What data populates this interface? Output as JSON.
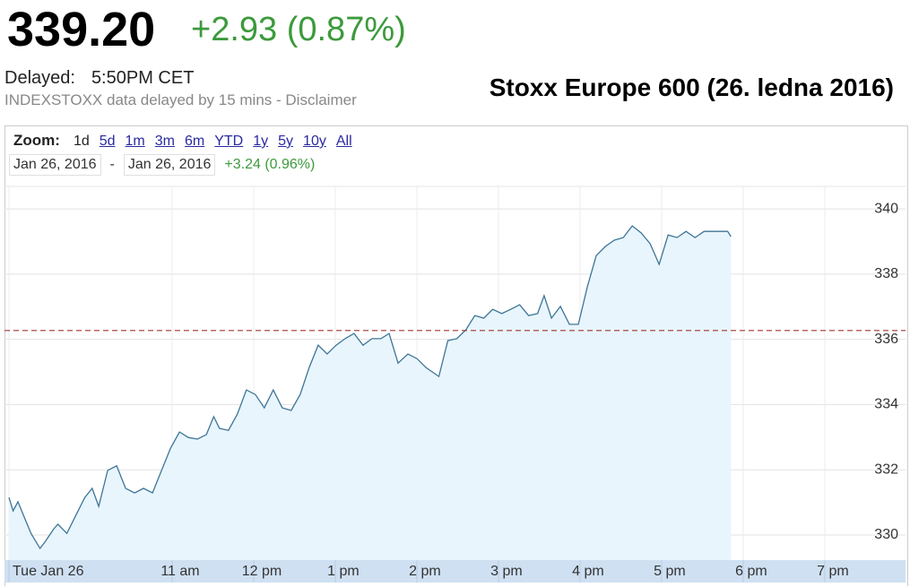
{
  "header": {
    "price": "339.20",
    "change": "+2.93 (0.87%)",
    "delayed_label": "Delayed:",
    "delayed_time": "5:50PM CET",
    "disclaimer": "INDEXSTOXX data delayed by 15 mins - Disclaimer",
    "title": "Stoxx Europe 600 (26. ledna 2016)"
  },
  "controls": {
    "zoom_label": "Zoom:",
    "zoom_options": [
      "1d",
      "5d",
      "1m",
      "3m",
      "6m",
      "YTD",
      "1y",
      "5y",
      "10y",
      "All"
    ],
    "date_from": "Jan 26, 2016",
    "separator": "-",
    "date_to": "Jan 26, 2016",
    "range_change": "+3.24 (0.96%)"
  },
  "chart_data": {
    "type": "line",
    "x": [
      9.0,
      9.05,
      9.11,
      9.2,
      9.27,
      9.38,
      9.44,
      9.55,
      9.6,
      9.71,
      9.82,
      9.93,
      10.02,
      10.1,
      10.21,
      10.32,
      10.43,
      10.54,
      10.65,
      10.76,
      10.87,
      10.98,
      11.09,
      11.2,
      11.31,
      11.42,
      11.51,
      11.58,
      11.69,
      11.8,
      11.91,
      12.02,
      12.13,
      12.24,
      12.35,
      12.46,
      12.57,
      12.68,
      12.79,
      12.9,
      13.01,
      13.12,
      13.23,
      13.34,
      13.45,
      13.56,
      13.66,
      13.77,
      13.89,
      14.0,
      14.11,
      14.27,
      14.38,
      14.49,
      14.6,
      14.71,
      14.82,
      14.93,
      15.04,
      15.15,
      15.26,
      15.37,
      15.48,
      15.56,
      15.65,
      15.76,
      15.87,
      15.98,
      16.09,
      16.2,
      16.31,
      16.42,
      16.53,
      16.64,
      16.75,
      16.86,
      16.97,
      17.08,
      17.19,
      17.3,
      17.41,
      17.52,
      17.68,
      17.81,
      17.85
    ],
    "values": [
      331.15,
      330.74,
      331.02,
      330.47,
      330.05,
      329.59,
      329.78,
      330.19,
      330.33,
      330.05,
      330.6,
      331.15,
      331.43,
      330.88,
      331.98,
      332.12,
      331.43,
      331.29,
      331.43,
      331.29,
      331.98,
      332.66,
      333.16,
      332.99,
      332.94,
      333.08,
      333.63,
      333.27,
      333.21,
      333.71,
      334.45,
      334.31,
      333.9,
      334.45,
      333.9,
      333.82,
      334.31,
      335.14,
      335.82,
      335.55,
      335.82,
      336.02,
      336.18,
      335.82,
      336.02,
      336.02,
      336.18,
      335.27,
      335.55,
      335.41,
      335.14,
      334.86,
      335.96,
      336.02,
      336.29,
      336.73,
      336.65,
      336.92,
      336.79,
      336.92,
      337.06,
      336.73,
      336.79,
      337.34,
      336.65,
      337.01,
      336.46,
      336.46,
      337.61,
      338.57,
      338.85,
      339.04,
      339.12,
      339.48,
      339.26,
      338.93,
      338.3,
      339.2,
      339.12,
      339.31,
      339.12,
      339.31,
      339.31,
      339.31,
      339.15
    ],
    "color": "#3e7596",
    "fill_color": "#e8f5fd",
    "xlim": [
      8.945,
      19.99
    ],
    "ylim": [
      329.23,
      340.69
    ],
    "xticks": [
      {
        "value": 9,
        "label": "Tue Jan 26"
      },
      {
        "value": 11,
        "label": "11 am"
      },
      {
        "value": 12,
        "label": "12 pm"
      },
      {
        "value": 13,
        "label": "1 pm"
      },
      {
        "value": 14,
        "label": "2 pm"
      },
      {
        "value": 15,
        "label": "3 pm"
      },
      {
        "value": 16,
        "label": "4 pm"
      },
      {
        "value": 17,
        "label": "5 pm"
      },
      {
        "value": 18,
        "label": "6 pm"
      },
      {
        "value": 19,
        "label": "7 pm"
      }
    ],
    "yticks": [
      330,
      332,
      334,
      336,
      338,
      340
    ],
    "reference_line": 336.27,
    "reference_color": "#a33333",
    "grid": true
  }
}
